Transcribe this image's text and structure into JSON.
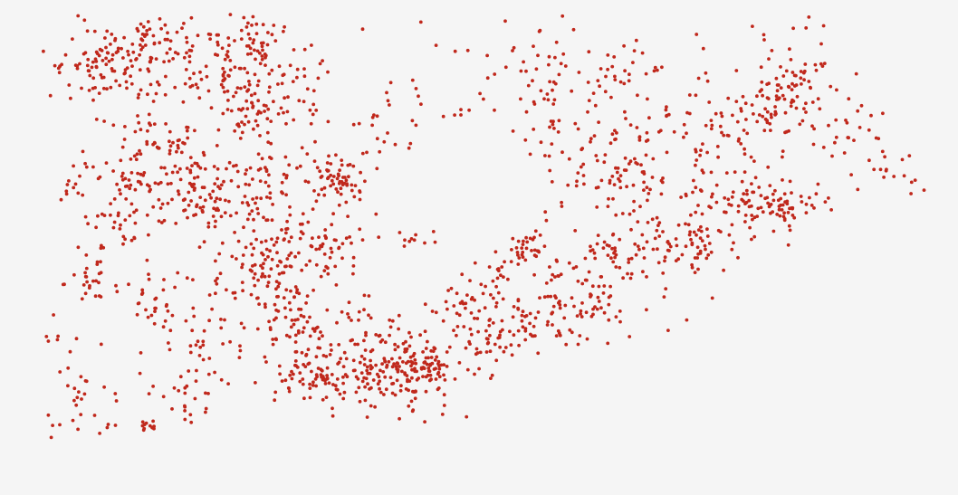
{
  "map": {
    "type": "point-density-map",
    "background_color": "#f5f5f5",
    "point_color": "#c0281c",
    "point_shape": "filled-circle",
    "labels_visible": false,
    "legend_visible": false,
    "distribution_shape": "dense clusters in the north-west, a band running south-east to a southern cluster, and a long east-west band across the east"
  }
}
